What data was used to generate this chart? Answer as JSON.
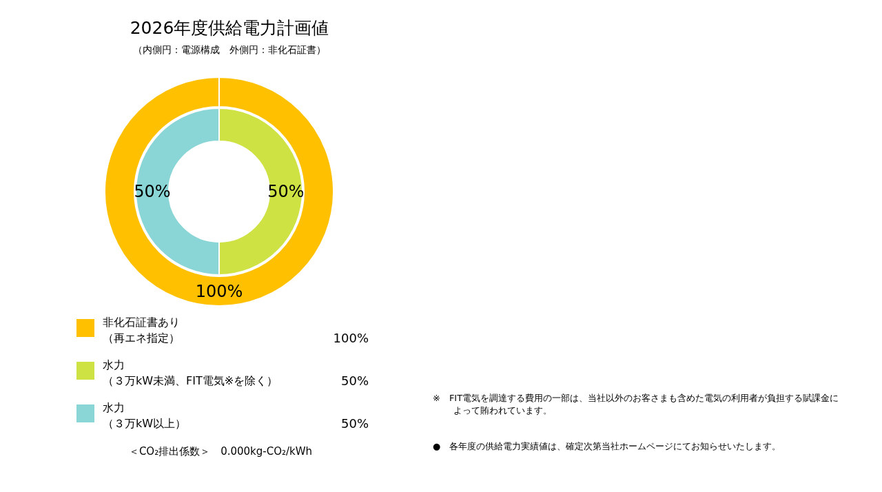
{
  "chart_data": {
    "type": "donut",
    "title": "2026年度供給電力計画値",
    "subtitle": "（内側円：電源構成　外側円：非化石証書）",
    "categories": [
      "非化石証書あり（再エネ指定）",
      "水力（３万kW未満、FIT電気※を除く）",
      "水力（３万kW以上）"
    ],
    "colors": [
      "#ffc000",
      "#cfe243",
      "#8ad5d6"
    ],
    "series": [
      {
        "values": [
          null,
          50,
          50
        ]
      },
      {
        "values": [
          100,
          null,
          null
        ]
      }
    ],
    "value_labels": [
      "100%",
      "50%",
      "50%"
    ],
    "legend": "bottom",
    "annotations": [
      "＜CO₂排出係数＞　0.000kg-CO₂/kWh",
      "※　FIT電気を調達する費用の一部は、当社以外のお客さまも含めた電気の利用者が負担する賦課金によって賄われています。",
      "●　各年度の供給電力実績値は、確定次第当社ホームページにてお知らせいたします。"
    ]
  }
}
